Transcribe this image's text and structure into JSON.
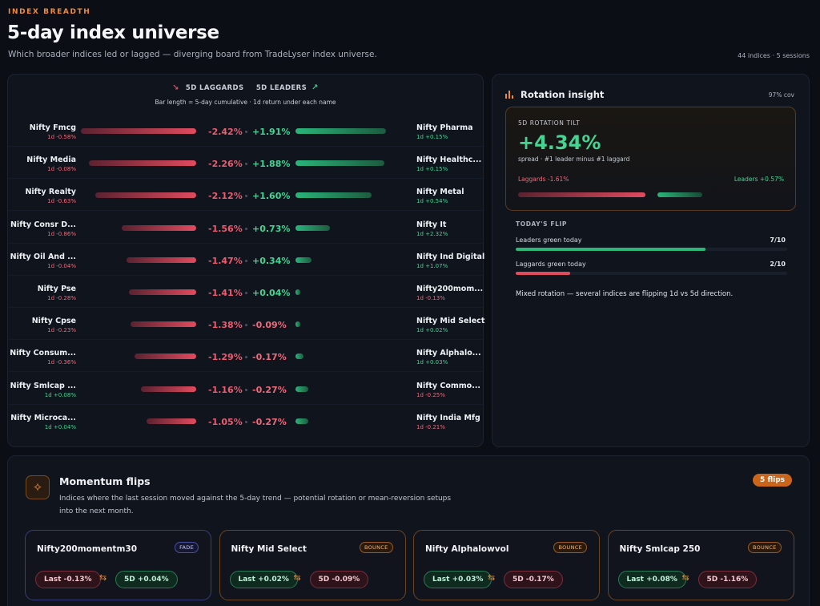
{
  "header": {
    "eyebrow": "INDEX BREADTH",
    "title": "5-day index universe",
    "subtitle": "Which broader indices led or lagged — diverging board from TradeLyser index universe.",
    "meta": "44 indices · 5 sessions"
  },
  "board": {
    "laggards_label": "5D LAGGARDS",
    "leaders_label": "5D LEADERS",
    "note": "Bar length = 5-day cumulative · 1d return under each name",
    "rows": [
      {
        "lname": "Nifty Fmcg",
        "lsub": "1d -0.58%",
        "lval": "-2.42%",
        "lmag": 2.42,
        "rval": "+1.91%",
        "rmag": 1.91,
        "rname": "Nifty Pharma",
        "rsub": "1d +0.15%"
      },
      {
        "lname": "Nifty Media",
        "lsub": "1d -0.08%",
        "lval": "-2.26%",
        "lmag": 2.26,
        "rval": "+1.88%",
        "rmag": 1.88,
        "rname": "Nifty Healthc...",
        "rsub": "1d +0.15%"
      },
      {
        "lname": "Nifty Realty",
        "lsub": "1d -0.63%",
        "lval": "-2.12%",
        "lmag": 2.12,
        "rval": "+1.60%",
        "rmag": 1.6,
        "rname": "Nifty Metal",
        "rsub": "1d +0.54%"
      },
      {
        "lname": "Nifty Consr D...",
        "lsub": "1d -0.86%",
        "lval": "-1.56%",
        "lmag": 1.56,
        "rval": "+0.73%",
        "rmag": 0.73,
        "rname": "Nifty It",
        "rsub": "1d +2.32%"
      },
      {
        "lname": "Nifty Oil And ...",
        "lsub": "1d -0.04%",
        "lval": "-1.47%",
        "lmag": 1.47,
        "rval": "+0.34%",
        "rmag": 0.34,
        "rname": "Nifty Ind Digital",
        "rsub": "1d +1.07%"
      },
      {
        "lname": "Nifty Pse",
        "lsub": "1d -0.28%",
        "lval": "-1.41%",
        "lmag": 1.41,
        "rval": "+0.04%",
        "rmag": 0.04,
        "rname": "Nifty200mom...",
        "rsub": "1d -0.13%"
      },
      {
        "lname": "Nifty Cpse",
        "lsub": "1d -0.23%",
        "lval": "-1.38%",
        "lmag": 1.38,
        "rval": "-0.09%",
        "rmag": 0.09,
        "rname": "Nifty Mid Select",
        "rsub": "1d +0.02%"
      },
      {
        "lname": "Nifty Consum...",
        "lsub": "1d -0.36%",
        "lval": "-1.29%",
        "lmag": 1.29,
        "rval": "-0.17%",
        "rmag": 0.17,
        "rname": "Nifty Alphalo...",
        "rsub": "1d +0.03%"
      },
      {
        "lname": "Nifty Smlcap ...",
        "lsub": "1d +0.08%",
        "lval": "-1.16%",
        "lmag": 1.16,
        "rval": "-0.27%",
        "rmag": 0.27,
        "rname": "Nifty Commo...",
        "rsub": "1d -0.25%"
      },
      {
        "lname": "Nifty Microca...",
        "lsub": "1d +0.04%",
        "lval": "-1.05%",
        "lmag": 1.05,
        "rval": "-0.27%",
        "rmag": 0.27,
        "rname": "Nifty India Mfg",
        "rsub": "1d -0.21%"
      }
    ]
  },
  "insight": {
    "title": "Rotation insight",
    "coverage": "97% cov",
    "tilt_label": "5D ROTATION TILT",
    "tilt_value": "+4.34%",
    "tilt_note": "spread · #1 leader minus #1 laggard",
    "laggards_text": "Laggards -1.61%",
    "leaders_text": "Leaders +0.57%",
    "flip_heading": "TODAY'S FLIP",
    "leaders_green_label": "Leaders green today",
    "leaders_green_value": "7/10",
    "leaders_green_fraction": 0.7,
    "laggards_green_label": "Laggards green today",
    "laggards_green_value": "2/10",
    "laggards_green_fraction": 0.2,
    "summary": "Mixed rotation — several indices are flipping 1d vs 5d direction.",
    "colors": {
      "positive": "#45d492",
      "negative": "#ef6a7b",
      "accent": "#f08a3c"
    }
  },
  "flips": {
    "title": "Momentum flips",
    "description": "Indices where the last session moved against the 5-day trend — potential rotation or mean-reversion setups into the next month.",
    "count_badge": "5 flips",
    "cards": [
      {
        "name": "Nifty200momentm30",
        "tag": "FADE",
        "last": "Last -0.13%",
        "five": "5D +0.04%"
      },
      {
        "name": "Nifty Mid Select",
        "tag": "BOUNCE",
        "last": "Last +0.02%",
        "five": "5D -0.09%"
      },
      {
        "name": "Nifty Alphalowvol",
        "tag": "BOUNCE",
        "last": "Last +0.03%",
        "five": "5D -0.17%"
      },
      {
        "name": "Nifty Smlcap 250",
        "tag": "BOUNCE",
        "last": "Last +0.08%",
        "five": "5D -1.16%"
      }
    ]
  }
}
